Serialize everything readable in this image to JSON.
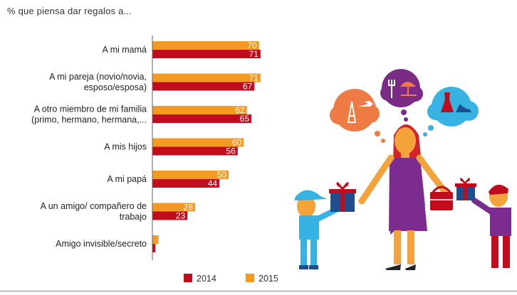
{
  "colors": {
    "series_2014": "#c00c1c",
    "series_2015": "#f39a24",
    "axis": "#666666"
  },
  "chart_data": {
    "type": "bar",
    "orientation": "horizontal",
    "title": "% que piensa dar regalos a...",
    "categories": [
      [
        "A mi mamá"
      ],
      [
        "A mi pareja (novio/novia,",
        "esposo/esposa)"
      ],
      [
        "A otro miembro de mi familia",
        "(primo, hermano, hermana,..."
      ],
      [
        "A mis hijos"
      ],
      [
        "A mi papá"
      ],
      [
        "A un amigo/ compañero de",
        "trabajo"
      ],
      [
        "Amigo invisible/secreto"
      ]
    ],
    "series": [
      {
        "name": "2015",
        "values": [
          70,
          71,
          62,
          60,
          50,
          28,
          4
        ]
      },
      {
        "name": "2014",
        "values": [
          71,
          67,
          65,
          56,
          44,
          23,
          2
        ]
      }
    ],
    "value_labels": [
      [
        "70",
        "71",
        "62",
        "60",
        "50",
        "28",
        ""
      ],
      [
        "71",
        "67",
        "65",
        "56",
        "44",
        "23",
        ""
      ]
    ],
    "xlim": [
      0,
      72
    ],
    "legend": [
      "2014",
      "2015"
    ],
    "legend_position": "bottom"
  },
  "illustration": {
    "icons": [
      "eiffel-tower-icon",
      "airplane-icon",
      "cutlery-icon",
      "beach-umbrella-icon",
      "dress-icon",
      "high-heel-icon"
    ]
  }
}
